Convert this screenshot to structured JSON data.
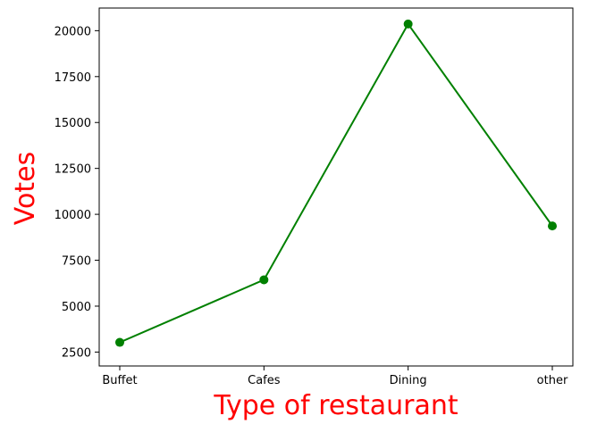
{
  "chart_data": {
    "type": "line",
    "categories": [
      "Buffet",
      "Cafes",
      "Dining",
      "other"
    ],
    "series": [
      {
        "values": [
          3028,
          6434,
          20363,
          9367
        ],
        "color": "#008000",
        "marker": "circle"
      }
    ],
    "xlabel": "Type of restaurant",
    "ylabel": "Votes",
    "axis_label_color": "#ff0000",
    "ylim": [
      1742,
      21233
    ],
    "yticks": [
      2500,
      5000,
      7500,
      10000,
      12500,
      15000,
      17500,
      20000
    ],
    "ytick_labels": [
      "2500",
      "5000",
      "7500",
      "10000",
      "12500",
      "15000",
      "17500",
      "20000"
    ],
    "grid": false,
    "legend": "none"
  }
}
